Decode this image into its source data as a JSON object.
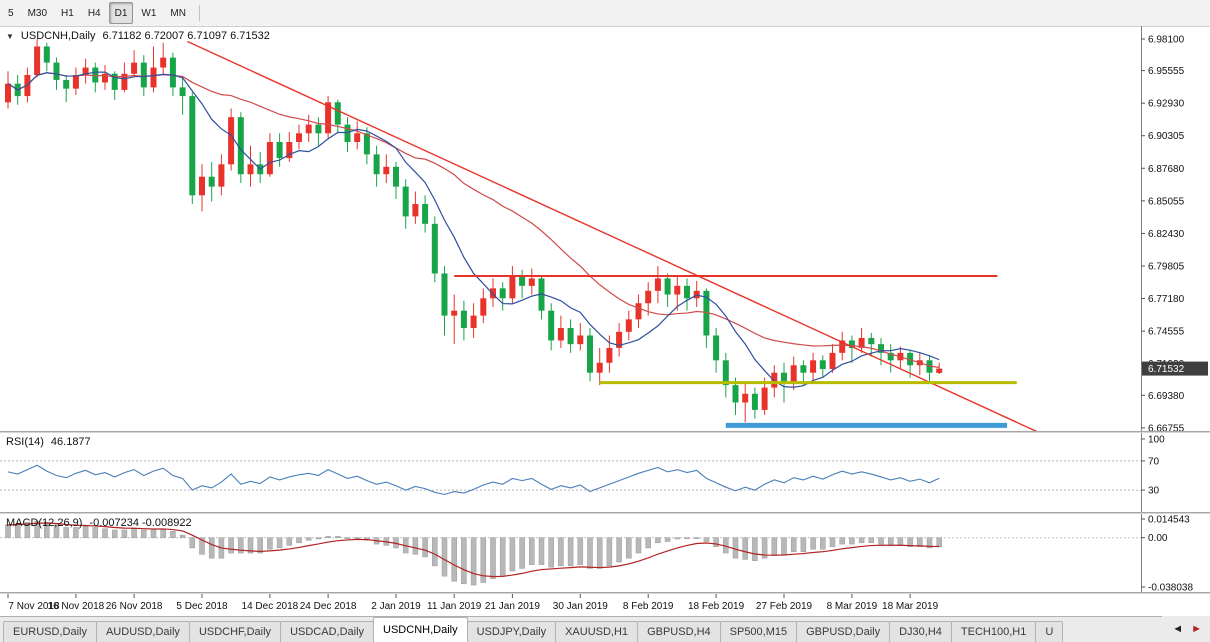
{
  "toolbar": {
    "timeframes": [
      {
        "label": "5",
        "active": false
      },
      {
        "label": "M30",
        "active": false
      },
      {
        "label": "H1",
        "active": false
      },
      {
        "label": "H4",
        "active": false
      },
      {
        "label": "D1",
        "active": true
      },
      {
        "label": "W1",
        "active": false
      },
      {
        "label": "MN",
        "active": false
      }
    ]
  },
  "chart_header": {
    "collapse_icon": "▼",
    "symbol": "USDCNH,Daily",
    "ohlc": "6.71182 6.72007 6.71097 6.71532"
  },
  "price_axis": {
    "labels": [
      "6.98100",
      "6.95555",
      "6.92930",
      "6.90305",
      "6.87680",
      "6.85055",
      "6.82430",
      "6.79805",
      "6.77180",
      "6.74555",
      "6.71930",
      "6.69380",
      "6.66755"
    ],
    "current_price": "6.71532",
    "badge_color": "#3f3f3f"
  },
  "rsi_panel": {
    "label": "RSI(14)",
    "value": "46.1877",
    "axis_labels": [
      "100",
      "70",
      "30"
    ],
    "levels": [
      70,
      30
    ],
    "line_color": "#4a7ebb"
  },
  "macd_panel": {
    "label": "MACD(12,26,9)",
    "values": "-0.007234 -0.008922",
    "axis_labels": [
      "0.014543",
      "0.00",
      "-0.038038"
    ],
    "histogram_color": "#b8b8b8",
    "signal_color": "#b22222"
  },
  "time_axis": {
    "labels": [
      {
        "text": "7 Nov 2018",
        "i": 0
      },
      {
        "text": "16 Nov 2018",
        "i": 7
      },
      {
        "text": "26 Nov 2018",
        "i": 13
      },
      {
        "text": "5 Dec 2018",
        "i": 20
      },
      {
        "text": "14 Dec 2018",
        "i": 27
      },
      {
        "text": "24 Dec 2018",
        "i": 33
      },
      {
        "text": "2 Jan 2019",
        "i": 40
      },
      {
        "text": "11 Jan 2019",
        "i": 46
      },
      {
        "text": "21 Jan 2019",
        "i": 52
      },
      {
        "text": "30 Jan 2019",
        "i": 59
      },
      {
        "text": "8 Feb 2019",
        "i": 66
      },
      {
        "text": "18 Feb 2019",
        "i": 73
      },
      {
        "text": "27 Feb 2019",
        "i": 80
      },
      {
        "text": "8 Mar 2019",
        "i": 87
      },
      {
        "text": "18 Mar 2019",
        "i": 93
      }
    ]
  },
  "tabs": {
    "items": [
      {
        "label": "EURUSD,Daily",
        "active": false
      },
      {
        "label": "AUDUSD,Daily",
        "active": false
      },
      {
        "label": "USDCHF,Daily",
        "active": false
      },
      {
        "label": "USDCAD,Daily",
        "active": false
      },
      {
        "label": "USDCNH,Daily",
        "active": true
      },
      {
        "label": "USDJPY,Daily",
        "active": false
      },
      {
        "label": "XAUUSD,H1",
        "active": false
      },
      {
        "label": "GBPUSD,H4",
        "active": false
      },
      {
        "label": "SP500,M15",
        "active": false
      },
      {
        "label": "GBPUSD,Daily",
        "active": false
      },
      {
        "label": "DJ30,H4",
        "active": false
      },
      {
        "label": "TECH100,H1",
        "active": false
      },
      {
        "label": "U",
        "active": false
      }
    ],
    "left_arrow": "◄",
    "right_arrow": "►"
  },
  "chart_data": {
    "type": "candlestick",
    "title": "USDCNH,Daily",
    "symbol": "USDCNH",
    "timeframe": "Daily",
    "ylim": [
      6.665,
      6.9915
    ],
    "up_color": "#e8332a",
    "down_color": "#18a54a",
    "grid": false,
    "candles": [
      [
        6.93,
        6.955,
        6.925,
        6.945
      ],
      [
        6.945,
        6.952,
        6.928,
        6.935
      ],
      [
        6.935,
        6.958,
        6.93,
        6.952
      ],
      [
        6.952,
        6.981,
        6.95,
        6.975
      ],
      [
        6.975,
        6.978,
        6.955,
        6.962
      ],
      [
        6.962,
        6.966,
        6.94,
        6.948
      ],
      [
        6.948,
        6.952,
        6.93,
        6.941
      ],
      [
        6.941,
        6.958,
        6.936,
        6.952
      ],
      [
        6.952,
        6.965,
        6.945,
        6.958
      ],
      [
        6.958,
        6.962,
        6.938,
        6.946
      ],
      [
        6.946,
        6.96,
        6.94,
        6.953
      ],
      [
        6.953,
        6.955,
        6.932,
        6.94
      ],
      [
        6.94,
        6.962,
        6.938,
        6.953
      ],
      [
        6.953,
        6.972,
        6.95,
        6.962
      ],
      [
        6.962,
        6.968,
        6.935,
        6.942
      ],
      [
        6.942,
        6.975,
        6.938,
        6.958
      ],
      [
        6.958,
        6.978,
        6.952,
        6.966
      ],
      [
        6.966,
        6.97,
        6.935,
        6.942
      ],
      [
        6.942,
        6.95,
        6.92,
        6.935
      ],
      [
        6.935,
        6.938,
        6.848,
        6.855
      ],
      [
        6.855,
        6.88,
        6.842,
        6.87
      ],
      [
        6.87,
        6.882,
        6.85,
        6.862
      ],
      [
        6.862,
        6.888,
        6.855,
        6.88
      ],
      [
        6.88,
        6.925,
        6.875,
        6.918
      ],
      [
        6.918,
        6.922,
        6.865,
        6.872
      ],
      [
        6.872,
        6.895,
        6.862,
        6.88
      ],
      [
        6.88,
        6.89,
        6.865,
        6.872
      ],
      [
        6.872,
        6.905,
        6.87,
        6.898
      ],
      [
        6.898,
        6.905,
        6.878,
        6.885
      ],
      [
        6.885,
        6.906,
        6.882,
        6.898
      ],
      [
        6.898,
        6.912,
        6.892,
        6.905
      ],
      [
        6.905,
        6.92,
        6.898,
        6.912
      ],
      [
        6.912,
        6.918,
        6.895,
        6.905
      ],
      [
        6.905,
        6.935,
        6.9,
        6.93
      ],
      [
        6.93,
        6.932,
        6.905,
        6.912
      ],
      [
        6.912,
        6.918,
        6.89,
        6.898
      ],
      [
        6.898,
        6.915,
        6.892,
        6.905
      ],
      [
        6.905,
        6.91,
        6.88,
        6.888
      ],
      [
        6.888,
        6.895,
        6.862,
        6.872
      ],
      [
        6.872,
        6.888,
        6.865,
        6.878
      ],
      [
        6.878,
        6.882,
        6.852,
        6.862
      ],
      [
        6.862,
        6.868,
        6.828,
        6.838
      ],
      [
        6.838,
        6.858,
        6.832,
        6.848
      ],
      [
        6.848,
        6.855,
        6.825,
        6.832
      ],
      [
        6.832,
        6.838,
        6.785,
        6.792
      ],
      [
        6.792,
        6.798,
        6.742,
        6.758
      ],
      [
        6.758,
        6.775,
        6.735,
        6.762
      ],
      [
        6.762,
        6.77,
        6.738,
        6.748
      ],
      [
        6.748,
        6.768,
        6.74,
        6.758
      ],
      [
        6.758,
        6.78,
        6.752,
        6.772
      ],
      [
        6.772,
        6.788,
        6.765,
        6.78
      ],
      [
        6.78,
        6.785,
        6.762,
        6.772
      ],
      [
        6.772,
        6.798,
        6.768,
        6.79
      ],
      [
        6.79,
        6.795,
        6.772,
        6.782
      ],
      [
        6.782,
        6.796,
        6.775,
        6.788
      ],
      [
        6.788,
        6.79,
        6.755,
        6.762
      ],
      [
        6.762,
        6.768,
        6.73,
        6.738
      ],
      [
        6.738,
        6.758,
        6.732,
        6.748
      ],
      [
        6.748,
        6.755,
        6.728,
        6.735
      ],
      [
        6.735,
        6.752,
        6.73,
        6.742
      ],
      [
        6.742,
        6.748,
        6.705,
        6.712
      ],
      [
        6.712,
        6.732,
        6.702,
        6.72
      ],
      [
        6.72,
        6.742,
        6.712,
        6.732
      ],
      [
        6.732,
        6.752,
        6.725,
        6.745
      ],
      [
        6.745,
        6.762,
        6.738,
        6.755
      ],
      [
        6.755,
        6.775,
        6.748,
        6.768
      ],
      [
        6.768,
        6.785,
        6.758,
        6.778
      ],
      [
        6.778,
        6.798,
        6.768,
        6.788
      ],
      [
        6.788,
        6.792,
        6.765,
        6.775
      ],
      [
        6.775,
        6.79,
        6.762,
        6.782
      ],
      [
        6.782,
        6.788,
        6.762,
        6.772
      ],
      [
        6.772,
        6.786,
        6.765,
        6.778
      ],
      [
        6.778,
        6.78,
        6.732,
        6.742
      ],
      [
        6.742,
        6.748,
        6.712,
        6.722
      ],
      [
        6.722,
        6.728,
        6.692,
        6.702
      ],
      [
        6.702,
        6.708,
        6.678,
        6.688
      ],
      [
        6.688,
        6.705,
        6.672,
        6.695
      ],
      [
        6.695,
        6.7,
        6.675,
        6.682
      ],
      [
        6.682,
        6.708,
        6.678,
        6.7
      ],
      [
        6.7,
        6.718,
        6.692,
        6.712
      ],
      [
        6.712,
        6.72,
        6.688,
        6.705
      ],
      [
        6.705,
        6.725,
        6.698,
        6.718
      ],
      [
        6.718,
        6.722,
        6.702,
        6.712
      ],
      [
        6.712,
        6.728,
        6.705,
        6.722
      ],
      [
        6.722,
        6.726,
        6.708,
        6.715
      ],
      [
        6.715,
        6.735,
        6.712,
        6.728
      ],
      [
        6.728,
        6.745,
        6.722,
        6.738
      ],
      [
        6.738,
        6.742,
        6.72,
        6.732
      ],
      [
        6.732,
        6.748,
        6.728,
        6.74
      ],
      [
        6.74,
        6.744,
        6.725,
        6.735
      ],
      [
        6.735,
        6.74,
        6.718,
        6.728
      ],
      [
        6.728,
        6.735,
        6.712,
        6.722
      ],
      [
        6.722,
        6.733,
        6.715,
        6.728
      ],
      [
        6.728,
        6.73,
        6.708,
        6.718
      ],
      [
        6.718,
        6.728,
        6.71,
        6.722
      ],
      [
        6.722,
        6.726,
        6.705,
        6.712
      ],
      [
        6.71182,
        6.72007,
        6.71097,
        6.71532
      ]
    ],
    "ma_fast": {
      "period": 8,
      "color": "#2f4f9f"
    },
    "ma_slow": {
      "period": 24,
      "color": "#d04b4b"
    },
    "objects": {
      "trendline": {
        "i1": 18.5,
        "p1": 6.979,
        "i2": 106.5,
        "p2": 6.663,
        "color": "#e8332a"
      },
      "hline_resistance": {
        "price": 6.79,
        "i1": 46,
        "i2": 102,
        "color": "#e8332a",
        "width": 2
      },
      "hline_support_yellow": {
        "price": 6.704,
        "i1": 61,
        "i2": 104,
        "color": "#b8bc00",
        "width": 3
      },
      "hline_support_blue": {
        "price": 6.6695,
        "i1": 74,
        "i2": 103,
        "color": "#3e9bd8",
        "width": 5
      }
    },
    "rsi": [
      55,
      52,
      58,
      64,
      56,
      50,
      47,
      53,
      57,
      51,
      54,
      48,
      54,
      58,
      50,
      56,
      60,
      50,
      46,
      30,
      36,
      33,
      41,
      52,
      38,
      42,
      39,
      48,
      44,
      48,
      51,
      53,
      50,
      58,
      52,
      46,
      49,
      43,
      38,
      41,
      36,
      30,
      35,
      32,
      27,
      24,
      28,
      26,
      31,
      37,
      41,
      38,
      46,
      43,
      46,
      38,
      31,
      36,
      33,
      37,
      28,
      33,
      38,
      43,
      48,
      53,
      57,
      61,
      55,
      58,
      54,
      57,
      46,
      40,
      34,
      29,
      34,
      30,
      38,
      44,
      40,
      47,
      44,
      49,
      45,
      51,
      56,
      52,
      55,
      52,
      48,
      44,
      47,
      42,
      45,
      40,
      46.19
    ],
    "macd": [
      0.01,
      0.011,
      0.012,
      0.013,
      0.012,
      0.01,
      0.008,
      0.008,
      0.009,
      0.008,
      0.007,
      0.006,
      0.006,
      0.007,
      0.006,
      0.006,
      0.007,
      0.005,
      0.002,
      -0.008,
      -0.013,
      -0.016,
      -0.016,
      -0.012,
      -0.012,
      -0.012,
      -0.012,
      -0.009,
      -0.008,
      -0.006,
      -0.004,
      -0.002,
      -0.001,
      0.001,
      0.001,
      0.0,
      0.0,
      -0.002,
      -0.005,
      -0.006,
      -0.008,
      -0.012,
      -0.013,
      -0.015,
      -0.022,
      -0.03,
      -0.034,
      -0.036,
      -0.037,
      -0.035,
      -0.032,
      -0.03,
      -0.026,
      -0.024,
      -0.021,
      -0.021,
      -0.023,
      -0.022,
      -0.022,
      -0.021,
      -0.024,
      -0.024,
      -0.022,
      -0.019,
      -0.016,
      -0.012,
      -0.008,
      -0.004,
      -0.003,
      -0.001,
      0.0,
      0.0,
      -0.003,
      -0.007,
      -0.012,
      -0.016,
      -0.017,
      -0.018,
      -0.016,
      -0.014,
      -0.013,
      -0.011,
      -0.011,
      -0.009,
      -0.009,
      -0.007,
      -0.005,
      -0.005,
      -0.004,
      -0.004,
      -0.005,
      -0.006,
      -0.006,
      -0.007,
      -0.007,
      -0.008,
      -0.0072
    ],
    "macd_range": [
      -0.0385,
      0.0146
    ]
  }
}
